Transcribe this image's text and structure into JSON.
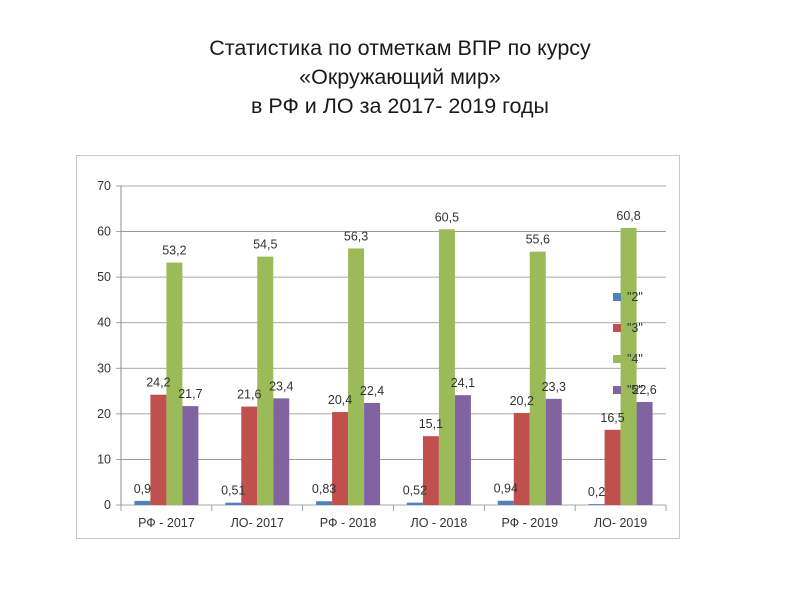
{
  "slide": {
    "title_line1": "Статистика по отметкам ВПР по курсу",
    "title_line2": "«Окружающий мир»",
    "title_line3": "в РФ и ЛО за  2017- 2019 годы"
  },
  "chart_data": {
    "type": "bar",
    "title": "",
    "xlabel": "",
    "ylabel": "",
    "ylim": [
      0,
      70
    ],
    "yticks": [
      0,
      10,
      20,
      30,
      40,
      50,
      60,
      70
    ],
    "grid": true,
    "legend_position": "right",
    "categories": [
      "РФ -  2017",
      "ЛО-  2017",
      "РФ -  2018",
      "ЛО - 2018",
      "РФ - 2019",
      "ЛО- 2019"
    ],
    "series": [
      {
        "name": "\"2\"",
        "color": "#4f81bd",
        "values": [
          0.9,
          0.51,
          0.83,
          0.52,
          0.94,
          0.2
        ],
        "labels": [
          "0,9",
          "0,51",
          "0,83",
          "0,52",
          "0,94",
          "0,2"
        ]
      },
      {
        "name": "\"3\"",
        "color": "#c0504d",
        "values": [
          24.2,
          21.6,
          20.4,
          15.1,
          20.2,
          16.5
        ],
        "labels": [
          "24,2",
          "21,6",
          "20,4",
          "15,1",
          "20,2",
          "16,5"
        ]
      },
      {
        "name": "\"4\"",
        "color": "#9bbb59",
        "values": [
          53.2,
          54.5,
          56.3,
          60.5,
          55.6,
          60.8
        ],
        "labels": [
          "53,2",
          "54,5",
          "56,3",
          "60,5",
          "55,6",
          "60,8"
        ]
      },
      {
        "name": "\"5\"",
        "color": "#8064a2",
        "values": [
          21.7,
          23.4,
          22.4,
          24.1,
          23.3,
          22.6
        ],
        "labels": [
          "21,7",
          "23,4",
          "22,4",
          "24,1",
          "23,3",
          "22,6"
        ]
      }
    ]
  }
}
